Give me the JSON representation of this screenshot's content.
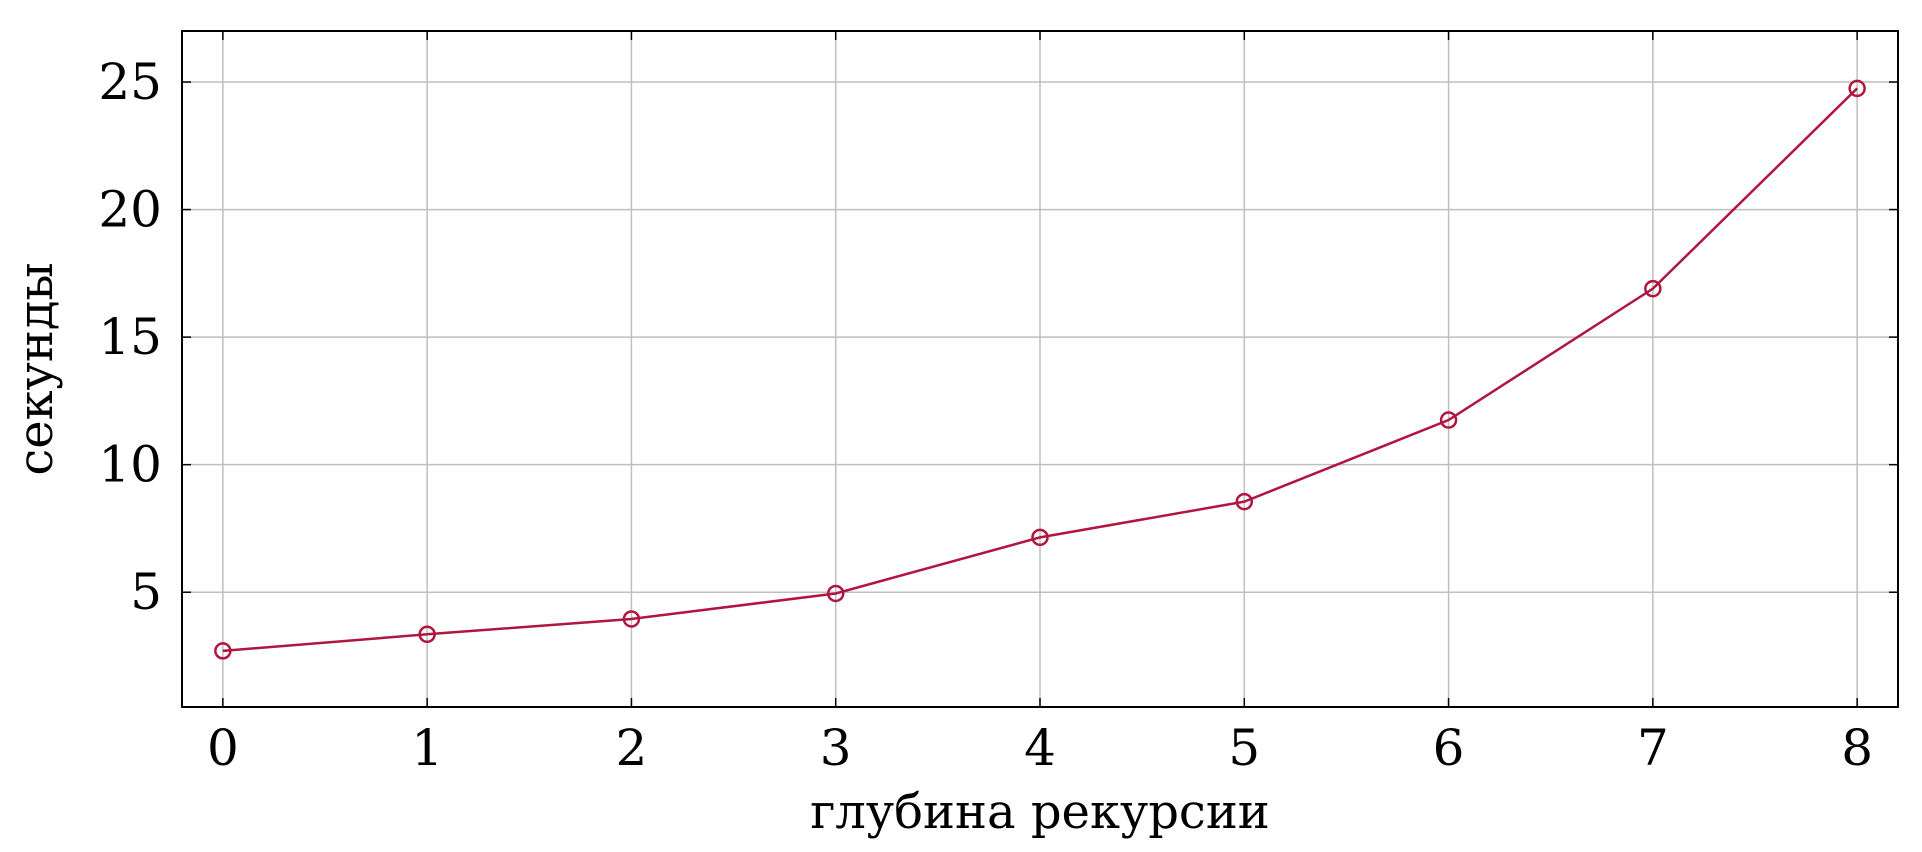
{
  "chart_data": {
    "type": "line",
    "title": "",
    "xlabel": "глубина рекурсии",
    "ylabel": "секунды",
    "xlim": [
      -0.2,
      8.2
    ],
    "ylim": [
      0.5,
      27
    ],
    "xticks": [
      0,
      1,
      2,
      3,
      4,
      5,
      6,
      7,
      8
    ],
    "yticks": [
      5,
      10,
      15,
      20,
      25
    ],
    "grid": true,
    "legend": "none",
    "series": [
      {
        "x": [
          0,
          1,
          2,
          3,
          4,
          5,
          6,
          7,
          8
        ],
        "y": [
          2.7,
          3.35,
          3.95,
          4.95,
          7.15,
          8.55,
          11.75,
          16.9,
          24.75
        ],
        "color": "#b0163f",
        "marker": "circle-open"
      }
    ]
  }
}
